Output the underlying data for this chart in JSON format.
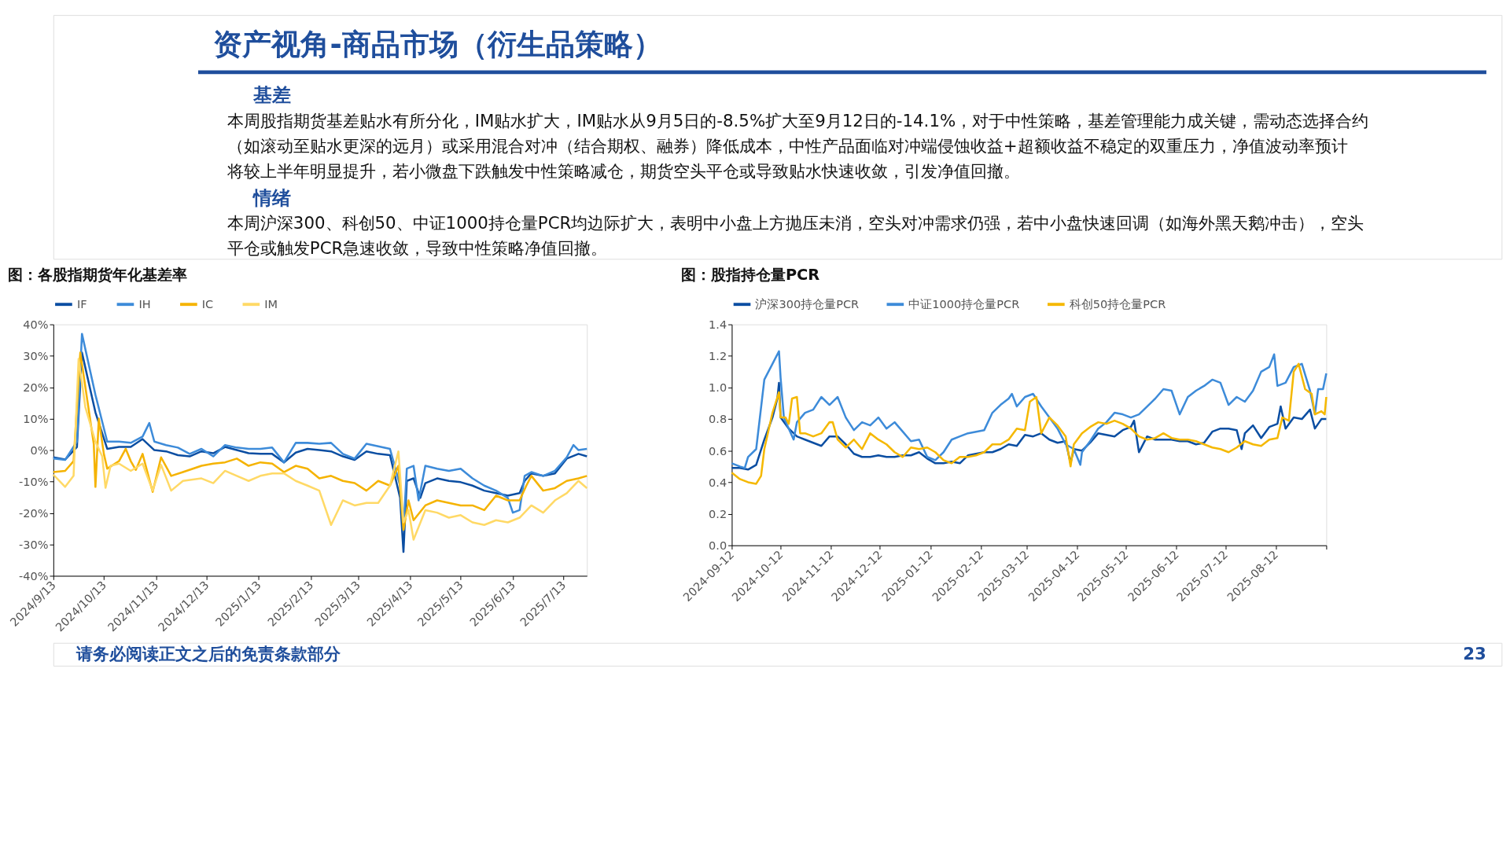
{
  "chart_data": [
    {
      "type": "other",
      "title": "资产视角-商品市场（衍生品策略）",
      "annotations": [
        "基差",
        "本周股指期货基差贴水有所分化，IM贴水扩大，IM贴水从9月5日的-8.5%扩大至9月12日的-14.1%，对于中性策略，基差管理能力成关键，需动态选择合约（如滚动至贴水更深的远月）或采用混合对冲（结合期权、融券）降低成本，中性产品面临对冲端侵蚀收益+超额收益不稳定的双重压力，净值波动率预计将较上半年明显提升，若小微盘下跌触发中性策略减仓，期货空头平仓或导致贴水快速收敛，引发净值回撤。",
        "情绪",
        "本周沪深300、科创50、中证1000持仓量PCR均边际扩大，表明中小盘上方抛压未消，空头对冲需求仍强，若中小盘快速回调（如海外黑天鹅冲击），空头平仓或触发PCR急速收敛，导致中性策略净值回撤。",
        "请务必阅读正文之后的免责条款部分",
        "23"
      ]
    },
    {
      "type": "line",
      "title": "图：各股指期货年化基差率",
      "legend": "top",
      "xlim": [
        "2024-09-13",
        "2025-07-27"
      ],
      "xticks": [
        {
          "value": "2024-09-13",
          "label": "2024/9/13"
        },
        {
          "value": "2024-10-13",
          "label": "2024/10/13"
        },
        {
          "value": "2024-11-13",
          "label": "2024/11/13"
        },
        {
          "value": "2024-12-13",
          "label": "2024/12/13"
        },
        {
          "value": "2025-01-13",
          "label": "2025/1/13"
        },
        {
          "value": "2025-02-13",
          "label": "2025/2/13"
        },
        {
          "value": "2025-03-13",
          "label": "2025/3/13"
        },
        {
          "value": "2025-04-13",
          "label": "2025/4/13"
        },
        {
          "value": "2025-05-13",
          "label": "2025/5/13"
        },
        {
          "value": "2025-06-13",
          "label": "2025/6/13"
        },
        {
          "value": "2025-07-13",
          "label": "2025/7/13"
        }
      ],
      "ylim": [
        -40,
        40
      ],
      "yticks": [
        {
          "value": -40,
          "label": "-40%"
        },
        {
          "value": -30,
          "label": "-30%"
        },
        {
          "value": -20,
          "label": "-20%"
        },
        {
          "value": -10,
          "label": "-10%"
        },
        {
          "value": 0,
          "label": "0%"
        },
        {
          "value": 10,
          "label": "10%"
        },
        {
          "value": 20,
          "label": "20%"
        },
        {
          "value": 30,
          "label": "30%"
        },
        {
          "value": 40,
          "label": "40%"
        }
      ],
      "series": [
        {
          "name": "IF",
          "color": "#0b4ea2",
          "x": [
            "2024-09-13",
            "2024-09-20",
            "2024-09-27",
            "2024-09-30",
            "2024-10-08",
            "2024-10-15",
            "2024-10-22",
            "2024-10-29",
            "2024-11-05",
            "2024-11-12",
            "2024-11-19",
            "2024-11-26",
            "2024-12-03",
            "2024-12-10",
            "2024-12-17",
            "2024-12-24",
            "2024-12-31",
            "2025-01-07",
            "2025-01-14",
            "2025-01-21",
            "2025-01-28",
            "2025-02-04",
            "2025-02-11",
            "2025-02-18",
            "2025-02-25",
            "2025-03-04",
            "2025-03-11",
            "2025-03-18",
            "2025-03-25",
            "2025-04-01",
            "2025-04-07",
            "2025-04-09",
            "2025-04-11",
            "2025-04-15",
            "2025-04-19",
            "2025-04-22",
            "2025-04-29",
            "2025-05-06",
            "2025-05-13",
            "2025-05-20",
            "2025-05-27",
            "2025-06-03",
            "2025-06-10",
            "2025-06-17",
            "2025-06-20",
            "2025-06-24",
            "2025-07-01",
            "2025-07-08",
            "2025-07-15",
            "2025-07-22",
            "2025-07-27"
          ],
          "values": [
            -2.3,
            -3,
            1,
            31,
            12,
            0.4,
            1,
            1,
            3.5,
            0,
            -0.4,
            -1.6,
            -2,
            -0.4,
            -1,
            1,
            0,
            -1,
            -1.2,
            -1.2,
            -3.9,
            -0.8,
            0.4,
            0,
            -0.4,
            -2,
            -3.1,
            -0.4,
            -1.2,
            -1.6,
            -15.2,
            -32.4,
            -9.8,
            -9,
            -15.2,
            -10.5,
            -9,
            -9.8,
            -10.2,
            -11.3,
            -12.9,
            -13.7,
            -14.5,
            -13.7,
            -9.8,
            -7.4,
            -8.2,
            -7.4,
            -2.7,
            -1.2,
            -2
          ]
        },
        {
          "name": "IH",
          "color": "#3d8bd9",
          "x": [
            "2024-09-13",
            "2024-09-20",
            "2024-09-27",
            "2024-09-30",
            "2024-10-08",
            "2024-10-15",
            "2024-10-22",
            "2024-10-29",
            "2024-11-05",
            "2024-11-09",
            "2024-11-12",
            "2024-11-19",
            "2024-11-26",
            "2024-12-03",
            "2024-12-10",
            "2024-12-17",
            "2024-12-24",
            "2024-12-31",
            "2025-01-07",
            "2025-01-14",
            "2025-01-21",
            "2025-01-28",
            "2025-02-04",
            "2025-02-11",
            "2025-02-18",
            "2025-02-25",
            "2025-03-04",
            "2025-03-11",
            "2025-03-18",
            "2025-03-25",
            "2025-04-01",
            "2025-04-07",
            "2025-04-09",
            "2025-04-11",
            "2025-04-15",
            "2025-04-18",
            "2025-04-22",
            "2025-04-29",
            "2025-05-06",
            "2025-05-13",
            "2025-05-20",
            "2025-05-27",
            "2025-06-03",
            "2025-06-10",
            "2025-06-13",
            "2025-06-17",
            "2025-06-20",
            "2025-06-24",
            "2025-07-01",
            "2025-07-08",
            "2025-07-15",
            "2025-07-19",
            "2025-07-22",
            "2025-07-27"
          ],
          "values": [
            -2.7,
            -3.1,
            2.7,
            37,
            17.6,
            2.7,
            2.7,
            2.3,
            4.3,
            8.6,
            2.7,
            1.6,
            0.8,
            -1.2,
            0.4,
            -2,
            1.6,
            0.8,
            0.4,
            0.4,
            0.8,
            -3.9,
            2.3,
            2.3,
            2,
            2.3,
            -1.2,
            -2.7,
            2,
            1.2,
            0.4,
            -11.3,
            -25.4,
            -5.9,
            -5,
            -16,
            -5,
            -5.9,
            -6.6,
            -5.9,
            -9,
            -11.3,
            -12.9,
            -15.2,
            -19.9,
            -19.1,
            -8.2,
            -7,
            -8.2,
            -6.6,
            -2.3,
            1.6,
            0,
            0.4
          ]
        },
        {
          "name": "IC",
          "color": "#f5b300",
          "x": [
            "2024-09-13",
            "2024-09-20",
            "2024-09-25",
            "2024-09-29",
            "2024-10-07",
            "2024-10-08",
            "2024-10-10",
            "2024-10-13",
            "2024-10-15",
            "2024-10-22",
            "2024-10-26",
            "2024-10-29",
            "2024-11-01",
            "2024-11-05",
            "2024-11-11",
            "2024-11-16",
            "2024-11-22",
            "2024-11-29",
            "2024-12-10",
            "2024-12-17",
            "2024-12-24",
            "2024-12-31",
            "2025-01-07",
            "2025-01-14",
            "2025-01-21",
            "2025-01-28",
            "2025-02-04",
            "2025-02-11",
            "2025-02-18",
            "2025-02-25",
            "2025-03-04",
            "2025-03-11",
            "2025-03-18",
            "2025-03-25",
            "2025-04-01",
            "2025-04-06",
            "2025-04-09",
            "2025-04-12",
            "2025-04-15",
            "2025-04-22",
            "2025-04-29",
            "2025-05-06",
            "2025-05-13",
            "2025-05-20",
            "2025-05-27",
            "2025-06-03",
            "2025-06-10",
            "2025-06-17",
            "2025-06-21",
            "2025-06-24",
            "2025-07-01",
            "2025-07-08",
            "2025-07-15",
            "2025-07-22",
            "2025-07-27"
          ],
          "values": [
            -7,
            -6.6,
            -3.5,
            31,
            2,
            -11.7,
            10,
            -1.2,
            -5.9,
            -3.5,
            0.4,
            -3.5,
            -6.3,
            -1.2,
            -13.3,
            -2.3,
            -8.2,
            -7,
            -5,
            -4.3,
            -3.9,
            -2.7,
            -5,
            -3.9,
            -4.3,
            -7,
            -5,
            -5.9,
            -9,
            -8.2,
            -9.8,
            -10.5,
            -12.9,
            -9.8,
            -11.3,
            -5,
            -25.4,
            -16,
            -22.3,
            -17.6,
            -16,
            -16.8,
            -17.6,
            -17.6,
            -19.1,
            -14.5,
            -16,
            -16,
            -11.3,
            -8.2,
            -12.9,
            -12.1,
            -9.8,
            -9,
            -8.2
          ]
        },
        {
          "name": "IM",
          "color": "#ffd966",
          "x": [
            "2024-09-13",
            "2024-09-20",
            "2024-09-25",
            "2024-09-28",
            "2024-10-02",
            "2024-10-08",
            "2024-10-12",
            "2024-10-14",
            "2024-10-17",
            "2024-10-22",
            "2024-10-29",
            "2024-11-05",
            "2024-11-11",
            "2024-11-16",
            "2024-11-22",
            "2024-11-29",
            "2024-12-10",
            "2024-12-17",
            "2024-12-24",
            "2024-12-31",
            "2025-01-07",
            "2025-01-14",
            "2025-01-21",
            "2025-01-28",
            "2025-02-04",
            "2025-02-11",
            "2025-02-18",
            "2025-02-25",
            "2025-03-04",
            "2025-03-11",
            "2025-03-18",
            "2025-03-25",
            "2025-04-01",
            "2025-04-06",
            "2025-04-09",
            "2025-04-12",
            "2025-04-15",
            "2025-04-22",
            "2025-04-29",
            "2025-05-06",
            "2025-05-13",
            "2025-05-20",
            "2025-05-27",
            "2025-06-03",
            "2025-06-10",
            "2025-06-17",
            "2025-06-24",
            "2025-07-01",
            "2025-07-08",
            "2025-07-15",
            "2025-07-22",
            "2025-07-27"
          ],
          "values": [
            -7.8,
            -11.7,
            -8.2,
            29,
            13.7,
            2.7,
            -2,
            -12,
            -5,
            -4.3,
            -6.6,
            -4.3,
            -12.9,
            -4.7,
            -12.9,
            -9.8,
            -9,
            -10.5,
            -6.6,
            -8.2,
            -9.8,
            -8.2,
            -7.4,
            -7.4,
            -9.8,
            -11.3,
            -12.9,
            -23.8,
            -16,
            -17.6,
            -16.8,
            -16.8,
            -11.3,
            -0.4,
            -23,
            -19.1,
            -28.5,
            -19.1,
            -19.9,
            -21.5,
            -20.7,
            -23,
            -23.8,
            -22.3,
            -23,
            -21.5,
            -17.6,
            -19.9,
            -16,
            -13.7,
            -9.8,
            -12.1
          ]
        }
      ]
    },
    {
      "type": "line",
      "title": "图：股指持仓量PCR",
      "legend": "top",
      "xlim": [
        "2024-09-12",
        "2025-09-12"
      ],
      "xticks": [
        {
          "value": "2024-09-12",
          "label": "2024-09-12"
        },
        {
          "value": "2024-10-12",
          "label": "2024-10-12"
        },
        {
          "value": "2024-11-12",
          "label": "2024-11-12"
        },
        {
          "value": "2024-12-12",
          "label": "2024-12-12"
        },
        {
          "value": "2025-01-12",
          "label": "2025-01-12"
        },
        {
          "value": "2025-02-12",
          "label": "2025-02-12"
        },
        {
          "value": "2025-03-12",
          "label": "2025-03-12"
        },
        {
          "value": "2025-04-12",
          "label": "2025-04-12"
        },
        {
          "value": "2025-05-12",
          "label": "2025-05-12"
        },
        {
          "value": "2025-06-12",
          "label": "2025-06-12"
        },
        {
          "value": "2025-07-12",
          "label": "2025-07-12"
        },
        {
          "value": "2025-08-12",
          "label": "2025-08-12"
        },
        {
          "value": "2025-09-12",
          "label": null
        }
      ],
      "ylim": [
        0,
        1.4
      ],
      "yticks": [
        {
          "value": 0,
          "label": "0.0"
        },
        {
          "value": 0.2,
          "label": "0.2"
        },
        {
          "value": 0.4,
          "label": "0.4"
        },
        {
          "value": 0.6,
          "label": "0.6"
        },
        {
          "value": 0.8,
          "label": "0.8"
        },
        {
          "value": 1,
          "label": "1.0"
        },
        {
          "value": 1.2,
          "label": "1.2"
        },
        {
          "value": 1.4,
          "label": "1.4"
        }
      ],
      "series": [
        {
          "name": "沪深300持仓量PCR",
          "color": "#0b4ea2",
          "x": [
            "2024-09-12",
            "2024-09-17",
            "2024-09-22",
            "2024-09-27",
            "2024-10-02",
            "2024-10-07",
            "2024-10-10",
            "2024-10-11",
            "2024-10-12",
            "2024-10-17",
            "2024-10-22",
            "2024-10-27",
            "2024-11-01",
            "2024-11-06",
            "2024-11-11",
            "2024-11-16",
            "2024-11-21",
            "2024-11-26",
            "2024-12-01",
            "2024-12-06",
            "2024-12-11",
            "2024-12-16",
            "2024-12-21",
            "2024-12-26",
            "2024-12-31",
            "2025-01-05",
            "2025-01-10",
            "2025-01-15",
            "2025-01-20",
            "2025-01-25",
            "2025-01-30",
            "2025-02-04",
            "2025-02-09",
            "2025-02-14",
            "2025-02-19",
            "2025-02-24",
            "2025-03-01",
            "2025-03-06",
            "2025-03-11",
            "2025-03-16",
            "2025-03-21",
            "2025-03-26",
            "2025-03-31",
            "2025-04-05",
            "2025-04-08",
            "2025-04-10",
            "2025-04-15",
            "2025-04-20",
            "2025-04-25",
            "2025-04-30",
            "2025-05-05",
            "2025-05-10",
            "2025-05-15",
            "2025-05-17",
            "2025-05-20",
            "2025-05-25",
            "2025-05-30",
            "2025-06-04",
            "2025-06-09",
            "2025-06-14",
            "2025-06-19",
            "2025-06-24",
            "2025-06-29",
            "2025-07-04",
            "2025-07-09",
            "2025-07-14",
            "2025-07-19",
            "2025-07-22",
            "2025-07-24",
            "2025-07-29",
            "2025-08-03",
            "2025-08-08",
            "2025-08-13",
            "2025-08-15",
            "2025-08-18",
            "2025-08-23",
            "2025-08-28",
            "2025-09-02",
            "2025-09-05",
            "2025-09-09",
            "2025-09-12"
          ],
          "values": [
            0.49,
            0.49,
            0.48,
            0.51,
            0.67,
            0.81,
            0.93,
            1.03,
            0.81,
            0.74,
            0.69,
            0.67,
            0.65,
            0.63,
            0.69,
            0.69,
            0.64,
            0.58,
            0.56,
            0.56,
            0.57,
            0.56,
            0.56,
            0.57,
            0.57,
            0.59,
            0.55,
            0.52,
            0.52,
            0.53,
            0.52,
            0.57,
            0.58,
            0.59,
            0.59,
            0.61,
            0.64,
            0.63,
            0.7,
            0.69,
            0.71,
            0.67,
            0.65,
            0.66,
            0.52,
            0.61,
            0.6,
            0.65,
            0.71,
            0.7,
            0.69,
            0.73,
            0.75,
            0.79,
            0.59,
            0.69,
            0.67,
            0.67,
            0.67,
            0.66,
            0.66,
            0.64,
            0.65,
            0.72,
            0.74,
            0.74,
            0.73,
            0.61,
            0.71,
            0.76,
            0.68,
            0.75,
            0.77,
            0.88,
            0.74,
            0.81,
            0.8,
            0.86,
            0.74,
            0.8,
            0.8
          ]
        },
        {
          "name": "中证1000持仓量PCR",
          "color": "#3d8bd9",
          "x": [
            "2024-09-12",
            "2024-09-17",
            "2024-09-20",
            "2024-09-22",
            "2024-09-27",
            "2024-10-02",
            "2024-10-07",
            "2024-10-11",
            "2024-10-12",
            "2024-10-14",
            "2024-10-17",
            "2024-10-20",
            "2024-10-22",
            "2024-10-27",
            "2024-11-01",
            "2024-11-06",
            "2024-11-11",
            "2024-11-16",
            "2024-11-21",
            "2024-11-26",
            "2024-12-01",
            "2024-12-06",
            "2024-12-11",
            "2024-12-16",
            "2024-12-21",
            "2024-12-26",
            "2024-12-31",
            "2025-01-05",
            "2025-01-10",
            "2025-01-15",
            "2025-01-20",
            "2025-01-25",
            "2025-01-30",
            "2025-02-04",
            "2025-02-09",
            "2025-02-14",
            "2025-02-19",
            "2025-02-24",
            "2025-03-01",
            "2025-03-03",
            "2025-03-06",
            "2025-03-11",
            "2025-03-16",
            "2025-03-21",
            "2025-03-26",
            "2025-03-31",
            "2025-04-05",
            "2025-04-10",
            "2025-04-14",
            "2025-04-15",
            "2025-04-20",
            "2025-04-25",
            "2025-04-30",
            "2025-05-05",
            "2025-05-10",
            "2025-05-15",
            "2025-05-20",
            "2025-05-25",
            "2025-05-30",
            "2025-06-04",
            "2025-06-09",
            "2025-06-14",
            "2025-06-19",
            "2025-06-24",
            "2025-06-29",
            "2025-07-04",
            "2025-07-09",
            "2025-07-14",
            "2025-07-19",
            "2025-07-24",
            "2025-07-29",
            "2025-08-03",
            "2025-08-08",
            "2025-08-11",
            "2025-08-13",
            "2025-08-18",
            "2025-08-23",
            "2025-08-28",
            "2025-09-02",
            "2025-09-05",
            "2025-09-07",
            "2025-09-10",
            "2025-09-12"
          ],
          "values": [
            0.52,
            0.5,
            0.49,
            0.56,
            0.61,
            1.05,
            1.15,
            1.23,
            1.06,
            0.81,
            0.74,
            0.67,
            0.78,
            0.84,
            0.86,
            0.94,
            0.89,
            0.94,
            0.81,
            0.73,
            0.78,
            0.76,
            0.81,
            0.74,
            0.78,
            0.72,
            0.66,
            0.67,
            0.56,
            0.54,
            0.59,
            0.67,
            0.69,
            0.71,
            0.72,
            0.73,
            0.84,
            0.89,
            0.93,
            0.96,
            0.88,
            0.94,
            0.96,
            0.88,
            0.81,
            0.74,
            0.64,
            0.61,
            0.51,
            0.59,
            0.66,
            0.74,
            0.78,
            0.84,
            0.83,
            0.81,
            0.83,
            0.88,
            0.93,
            0.99,
            0.98,
            0.83,
            0.94,
            0.98,
            1.01,
            1.05,
            1.03,
            0.89,
            0.94,
            0.91,
            0.98,
            1.1,
            1.13,
            1.21,
            1.01,
            1.03,
            1.13,
            1.15,
            0.98,
            0.83,
            0.99,
            0.99,
            1.09
          ]
        },
        {
          "name": "科创50持仓量PCR",
          "color": "#f5b800",
          "x": [
            "2024-09-12",
            "2024-09-17",
            "2024-09-22",
            "2024-09-27",
            "2024-09-30",
            "2024-10-02",
            "2024-10-07",
            "2024-10-11",
            "2024-10-12",
            "2024-10-15",
            "2024-10-17",
            "2024-10-19",
            "2024-10-22",
            "2024-10-24",
            "2024-10-27",
            "2024-11-01",
            "2024-11-06",
            "2024-11-11",
            "2024-11-13",
            "2024-11-16",
            "2024-11-21",
            "2024-11-26",
            "2024-12-01",
            "2024-12-06",
            "2024-12-11",
            "2024-12-16",
            "2024-12-21",
            "2024-12-26",
            "2024-12-31",
            "2025-01-05",
            "2025-01-10",
            "2025-01-15",
            "2025-01-20",
            "2025-01-25",
            "2025-01-30",
            "2025-02-04",
            "2025-02-09",
            "2025-02-14",
            "2025-02-19",
            "2025-02-24",
            "2025-03-01",
            "2025-03-06",
            "2025-03-11",
            "2025-03-14",
            "2025-03-18",
            "2025-03-21",
            "2025-03-26",
            "2025-03-31",
            "2025-04-05",
            "2025-04-08",
            "2025-04-10",
            "2025-04-15",
            "2025-04-20",
            "2025-04-25",
            "2025-04-30",
            "2025-05-05",
            "2025-05-10",
            "2025-05-15",
            "2025-05-20",
            "2025-05-25",
            "2025-05-30",
            "2025-06-04",
            "2025-06-09",
            "2025-06-14",
            "2025-06-19",
            "2025-06-24",
            "2025-06-29",
            "2025-07-04",
            "2025-07-09",
            "2025-07-14",
            "2025-07-19",
            "2025-07-24",
            "2025-07-29",
            "2025-08-03",
            "2025-08-08",
            "2025-08-13",
            "2025-08-16",
            "2025-08-20",
            "2025-08-23",
            "2025-08-26",
            "2025-08-30",
            "2025-09-03",
            "2025-09-05",
            "2025-09-09",
            "2025-09-11",
            "2025-09-12"
          ],
          "values": [
            0.46,
            0.42,
            0.4,
            0.39,
            0.44,
            0.61,
            0.84,
            0.97,
            0.81,
            0.81,
            0.77,
            0.93,
            0.94,
            0.71,
            0.71,
            0.69,
            0.71,
            0.78,
            0.78,
            0.67,
            0.62,
            0.67,
            0.61,
            0.71,
            0.67,
            0.64,
            0.59,
            0.56,
            0.62,
            0.61,
            0.62,
            0.59,
            0.54,
            0.52,
            0.56,
            0.56,
            0.57,
            0.59,
            0.64,
            0.64,
            0.67,
            0.74,
            0.73,
            0.91,
            0.94,
            0.71,
            0.81,
            0.76,
            0.69,
            0.5,
            0.64,
            0.71,
            0.75,
            0.78,
            0.77,
            0.79,
            0.77,
            0.74,
            0.69,
            0.67,
            0.68,
            0.71,
            0.68,
            0.67,
            0.67,
            0.66,
            0.64,
            0.62,
            0.61,
            0.59,
            0.62,
            0.66,
            0.64,
            0.63,
            0.67,
            0.68,
            0.81,
            0.79,
            1.1,
            1.15,
            0.99,
            0.96,
            0.83,
            0.85,
            0.83,
            0.94
          ]
        }
      ]
    }
  ]
}
